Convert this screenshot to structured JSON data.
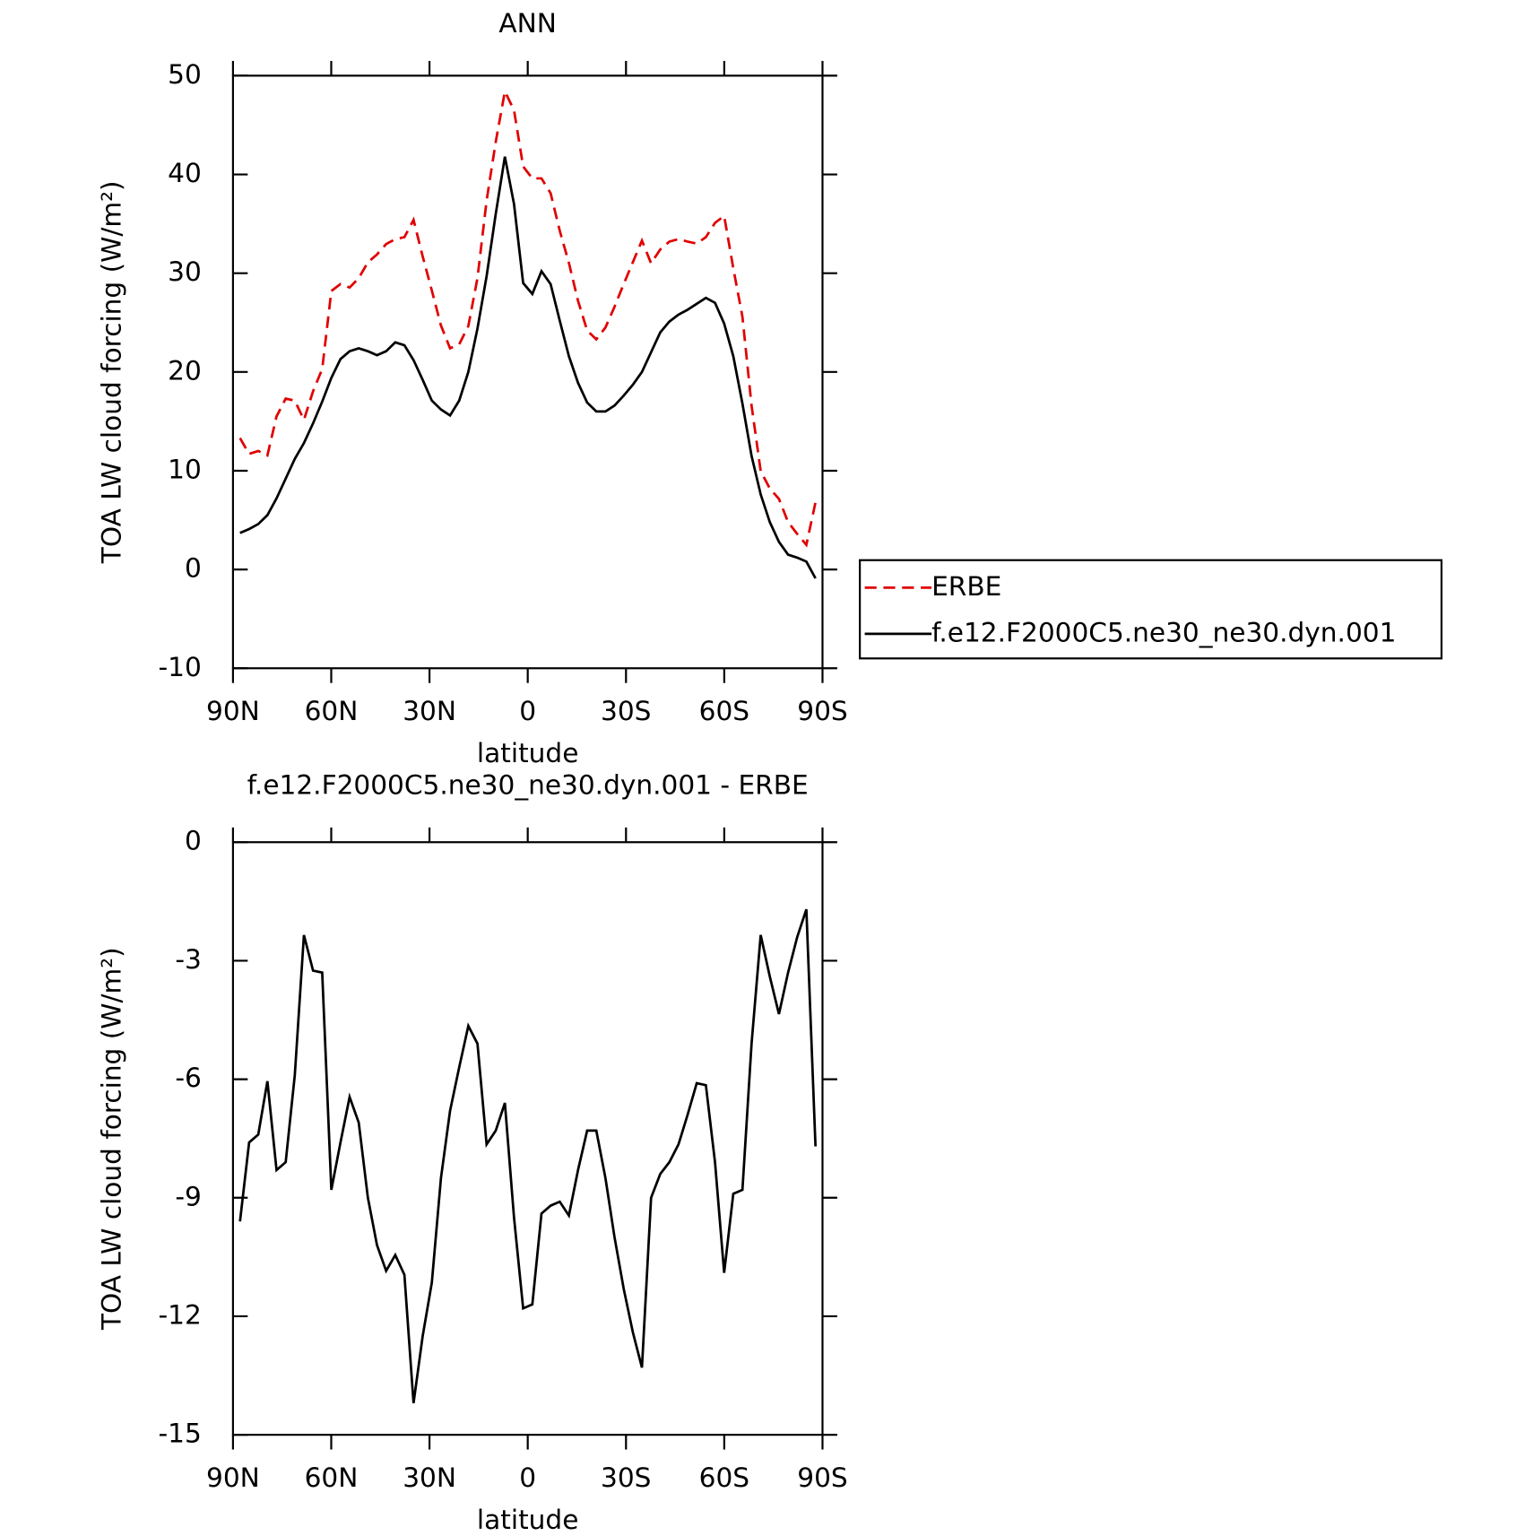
{
  "chart_data": [
    {
      "type": "line",
      "title": "ANN",
      "xlabel": "latitude",
      "ylabel": "TOA LW cloud forcing (W/m²)",
      "x": [
        87.86,
        85.07,
        82.28,
        79.49,
        76.7,
        73.91,
        71.13,
        68.34,
        65.55,
        62.76,
        59.97,
        57.18,
        54.39,
        51.6,
        48.81,
        46.03,
        43.24,
        40.45,
        37.66,
        34.87,
        32.08,
        29.29,
        26.5,
        23.72,
        20.93,
        18.14,
        15.35,
        12.56,
        9.77,
        6.98,
        4.19,
        1.4,
        -1.4,
        -4.19,
        -6.98,
        -9.77,
        -12.56,
        -15.35,
        -18.14,
        -20.93,
        -23.72,
        -26.5,
        -29.29,
        -32.08,
        -34.87,
        -37.66,
        -40.45,
        -43.24,
        -46.03,
        -48.81,
        -51.6,
        -54.39,
        -57.18,
        -59.97,
        -62.76,
        -65.55,
        -68.34,
        -71.13,
        -73.91,
        -76.7,
        -79.49,
        -82.28,
        -85.07,
        -87.86
      ],
      "series": [
        {
          "name": "ERBE",
          "color": "#e00000",
          "dash": true,
          "values": [
            13.3,
            11.7,
            12.0,
            11.55,
            15.5,
            17.3,
            17.1,
            15.15,
            18.05,
            20.3,
            28.2,
            28.9,
            28.55,
            29.5,
            31.1,
            31.9,
            32.95,
            33.45,
            33.65,
            35.4,
            31.7,
            28.25,
            24.7,
            22.4,
            22.8,
            24.65,
            29.5,
            37.35,
            43.3,
            48.4,
            46.5,
            40.8,
            39.6,
            39.6,
            38.1,
            34.3,
            31.05,
            27.2,
            24.2,
            23.3,
            24.5,
            26.6,
            28.9,
            31.1,
            33.3,
            31.0,
            32.4,
            33.2,
            33.45,
            33.2,
            33.0,
            33.65,
            35.1,
            35.8,
            30.5,
            25.6,
            16.6,
            9.95,
            8.2,
            7.15,
            4.8,
            3.6,
            2.5,
            6.8
          ]
        },
        {
          "name": "f.e12.F2000C5.ne30_ne30.dyn.001",
          "color": "#000000",
          "dash": false,
          "values": [
            3.7,
            4.1,
            4.6,
            5.5,
            7.2,
            9.2,
            11.2,
            12.8,
            14.8,
            17.0,
            19.4,
            21.3,
            22.1,
            22.4,
            22.1,
            21.7,
            22.1,
            23.0,
            22.7,
            21.2,
            19.2,
            17.1,
            16.2,
            15.6,
            17.1,
            20.0,
            24.4,
            29.7,
            36.0,
            41.8,
            37.0,
            29.0,
            27.9,
            30.2,
            28.9,
            25.2,
            21.6,
            18.9,
            16.9,
            16.0,
            16.0,
            16.6,
            17.6,
            18.7,
            20.0,
            22.0,
            24.0,
            25.1,
            25.8,
            26.3,
            26.9,
            27.5,
            27.0,
            24.9,
            21.6,
            16.8,
            11.5,
            7.6,
            4.8,
            2.8,
            1.5,
            1.2,
            0.8,
            -0.9
          ]
        }
      ],
      "xlim": [
        90,
        -90
      ],
      "xticks": [
        {
          "value": 90,
          "label": "90N"
        },
        {
          "value": 60,
          "label": "60N"
        },
        {
          "value": 30,
          "label": "30N"
        },
        0,
        {
          "value": -30,
          "label": "30S"
        },
        {
          "value": -60,
          "label": "60S"
        },
        {
          "value": -90,
          "label": "90S"
        }
      ],
      "ylim": [
        -10,
        50
      ],
      "yticks": [
        -10,
        0,
        10,
        20,
        30,
        40,
        50
      ],
      "legend": "outside-right"
    },
    {
      "type": "line",
      "title": "f.e12.F2000C5.ne30_ne30.dyn.001 - ERBE",
      "xlabel": "latitude",
      "ylabel": "TOA LW cloud forcing (W/m²)",
      "x": [
        87.86,
        85.07,
        82.28,
        79.49,
        76.7,
        73.91,
        71.13,
        68.34,
        65.55,
        62.76,
        59.97,
        57.18,
        54.39,
        51.6,
        48.81,
        46.03,
        43.24,
        40.45,
        37.66,
        34.87,
        32.08,
        29.29,
        26.5,
        23.72,
        20.93,
        18.14,
        15.35,
        12.56,
        9.77,
        6.98,
        4.19,
        1.4,
        -1.4,
        -4.19,
        -6.98,
        -9.77,
        -12.56,
        -15.35,
        -18.14,
        -20.93,
        -23.72,
        -26.5,
        -29.29,
        -32.08,
        -34.87,
        -37.66,
        -40.45,
        -43.24,
        -46.03,
        -48.81,
        -51.6,
        -54.39,
        -57.18,
        -59.97,
        -62.76,
        -65.55,
        -68.34,
        -71.13,
        -73.91,
        -76.7,
        -79.49,
        -82.28,
        -85.07,
        -87.86
      ],
      "color": "#000000",
      "values": [
        -9.6,
        -7.6,
        -7.4,
        -6.05,
        -8.3,
        -8.1,
        -5.9,
        -2.35,
        -3.25,
        -3.3,
        -8.8,
        -7.6,
        -6.45,
        -7.1,
        -9.0,
        -10.2,
        -10.85,
        -10.45,
        -10.95,
        -14.2,
        -12.5,
        -11.15,
        -8.5,
        -6.8,
        -5.7,
        -4.65,
        -5.1,
        -7.65,
        -7.3,
        -6.6,
        -9.5,
        -11.8,
        -11.7,
        -9.4,
        -9.2,
        -9.1,
        -9.45,
        -8.3,
        -7.3,
        -7.3,
        -8.5,
        -10.0,
        -11.3,
        -12.4,
        -13.3,
        -9.0,
        -8.4,
        -8.1,
        -7.65,
        -6.9,
        -6.1,
        -6.15,
        -8.1,
        -10.9,
        -8.9,
        -8.8,
        -5.1,
        -2.35,
        -3.4,
        -4.35,
        -3.3,
        -2.4,
        -1.7,
        -7.7
      ],
      "xlim": [
        90,
        -90
      ],
      "xticks": [
        {
          "value": 90,
          "label": "90N"
        },
        {
          "value": 60,
          "label": "60N"
        },
        {
          "value": 30,
          "label": "30N"
        },
        0,
        {
          "value": -30,
          "label": "30S"
        },
        {
          "value": -60,
          "label": "60S"
        },
        {
          "value": -90,
          "label": "90S"
        }
      ],
      "ylim": [
        -15,
        0
      ],
      "yticks": [
        -15,
        -12,
        -9,
        -6,
        -3,
        0
      ]
    }
  ]
}
